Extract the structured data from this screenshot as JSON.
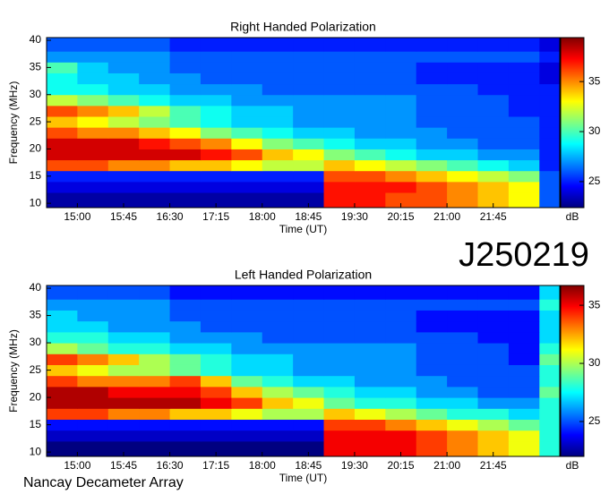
{
  "chart_data": [
    {
      "type": "heatmap",
      "title": "Right Handed Polarization",
      "xlabel": "Time (UT)",
      "ylabel": "Frequency (MHz)",
      "colorbar_label": "dB",
      "colormap": "jet",
      "xlim": [
        14.5,
        22.83
      ],
      "ylim": [
        9.2,
        40.5
      ],
      "clim": [
        22.4,
        39.4
      ],
      "xticks": [
        {
          "value": 15,
          "label": "15:00"
        },
        {
          "value": 15.75,
          "label": "15:45"
        },
        {
          "value": 16.5,
          "label": "16:30"
        },
        {
          "value": 17.25,
          "label": "17:15"
        },
        {
          "value": 18,
          "label": "18:00"
        },
        {
          "value": 18.75,
          "label": "18:45"
        },
        {
          "value": 19.5,
          "label": "19:30"
        },
        {
          "value": 20.25,
          "label": "20:15"
        },
        {
          "value": 21,
          "label": "21:00"
        },
        {
          "value": 21.75,
          "label": "21:45"
        }
      ],
      "yticks": [
        10,
        15,
        20,
        25,
        30,
        35,
        40
      ],
      "cticks": [
        25,
        30,
        35
      ],
      "x_edges": [
        14.5,
        15,
        15.5,
        16,
        16.5,
        17,
        17.5,
        18,
        18.5,
        19,
        19.5,
        20,
        20.5,
        21,
        21.5,
        22,
        22.5,
        22.83
      ],
      "y_edges": [
        9.2,
        12,
        14,
        16,
        18,
        20,
        22,
        24,
        26,
        28,
        30,
        32,
        34,
        36,
        38,
        40.5
      ],
      "values": [
        [
          23,
          23,
          23,
          23,
          23,
          23,
          23,
          23,
          23,
          37,
          37,
          36,
          36,
          35,
          34,
          33,
          26
        ],
        [
          24,
          24,
          24,
          24,
          24,
          24,
          24,
          24,
          24,
          37,
          37,
          37,
          36,
          35,
          34,
          33,
          26
        ],
        [
          25,
          25,
          25,
          25,
          25,
          25,
          25,
          25,
          25,
          36,
          36,
          35,
          34,
          33,
          32,
          31,
          26
        ],
        [
          36,
          36,
          35,
          35,
          34,
          34,
          33,
          32,
          32,
          34,
          33,
          32,
          31,
          30,
          29,
          28,
          25
        ],
        [
          38,
          38,
          38,
          38,
          38,
          37,
          36,
          34,
          33,
          31,
          30,
          29,
          28,
          28,
          27,
          27,
          25
        ],
        [
          38,
          38,
          38,
          37,
          36,
          35,
          33,
          31,
          30,
          29,
          28,
          28,
          27,
          27,
          26,
          26,
          25
        ],
        [
          36,
          35,
          35,
          34,
          33,
          31,
          30,
          29,
          28,
          28,
          27,
          27,
          27,
          26,
          26,
          26,
          25
        ],
        [
          34,
          33,
          32,
          31,
          30,
          29,
          28,
          28,
          27,
          27,
          27,
          27,
          26,
          26,
          26,
          26,
          25
        ],
        [
          36,
          35,
          34,
          32,
          30,
          29,
          28,
          28,
          27,
          27,
          27,
          27,
          26,
          26,
          26,
          25,
          25
        ],
        [
          32,
          31,
          30,
          29,
          28,
          28,
          27,
          27,
          27,
          27,
          27,
          27,
          26,
          26,
          26,
          25,
          25
        ],
        [
          29,
          29,
          28,
          28,
          27,
          27,
          27,
          26,
          26,
          26,
          26,
          26,
          26,
          26,
          25,
          25,
          25
        ],
        [
          29,
          28,
          28,
          27,
          27,
          26,
          26,
          26,
          26,
          26,
          26,
          26,
          25,
          25,
          25,
          25,
          24
        ],
        [
          30,
          28,
          27,
          27,
          26,
          26,
          26,
          26,
          26,
          26,
          26,
          26,
          25,
          25,
          25,
          25,
          24
        ],
        [
          27,
          27,
          27,
          27,
          26,
          26,
          26,
          26,
          26,
          26,
          26,
          26,
          26,
          26,
          26,
          26,
          25
        ],
        [
          26,
          26,
          26,
          26,
          25,
          25,
          25,
          25,
          25,
          25,
          25,
          25,
          25,
          25,
          25,
          25,
          24
        ]
      ]
    },
    {
      "type": "heatmap",
      "title": "Left Handed Polarization",
      "xlabel": "Time (UT)",
      "ylabel": "Frequency (MHz)",
      "colorbar_label": "dB",
      "colormap": "jet",
      "xlim": [
        14.5,
        22.83
      ],
      "ylim": [
        9.2,
        40.5
      ],
      "clim": [
        22,
        36.7
      ],
      "xticks": [
        {
          "value": 15,
          "label": "15:00"
        },
        {
          "value": 15.75,
          "label": "15:45"
        },
        {
          "value": 16.5,
          "label": "16:30"
        },
        {
          "value": 17.25,
          "label": "17:15"
        },
        {
          "value": 18,
          "label": "18:00"
        },
        {
          "value": 18.75,
          "label": "18:45"
        },
        {
          "value": 19.5,
          "label": "19:30"
        },
        {
          "value": 20.25,
          "label": "20:15"
        },
        {
          "value": 21,
          "label": "21:00"
        },
        {
          "value": 21.75,
          "label": "21:45"
        }
      ],
      "yticks": [
        10,
        15,
        20,
        25,
        30,
        35,
        40
      ],
      "cticks": [
        25,
        30,
        35
      ],
      "x_edges": [
        14.5,
        15,
        15.5,
        16,
        16.5,
        17,
        17.5,
        18,
        18.5,
        19,
        19.5,
        20,
        20.5,
        21,
        21.5,
        22,
        22.5,
        22.83
      ],
      "y_edges": [
        9.2,
        12,
        14,
        16,
        18,
        20,
        22,
        24,
        26,
        28,
        30,
        32,
        34,
        36,
        38,
        40.5
      ],
      "values": [
        [
          22,
          22,
          22,
          22,
          22,
          22,
          22,
          22,
          22,
          35,
          35,
          35,
          34,
          33,
          32,
          31,
          28
        ],
        [
          23,
          23,
          23,
          23,
          23,
          23,
          23,
          23,
          23,
          35,
          35,
          35,
          34,
          33,
          32,
          31,
          28
        ],
        [
          24,
          24,
          24,
          24,
          24,
          24,
          24,
          24,
          24,
          34,
          34,
          33,
          32,
          31,
          30,
          29,
          28
        ],
        [
          34,
          34,
          33,
          33,
          32,
          32,
          31,
          30,
          30,
          32,
          31,
          30,
          29,
          28,
          28,
          27,
          28
        ],
        [
          36,
          36,
          36,
          36,
          36,
          35,
          34,
          32,
          31,
          29,
          28,
          28,
          27,
          27,
          26,
          26,
          28
        ],
        [
          36,
          36,
          35,
          35,
          35,
          34,
          32,
          30,
          29,
          28,
          27,
          27,
          26,
          26,
          25,
          25,
          29
        ],
        [
          34,
          33,
          33,
          33,
          34,
          32,
          29,
          28,
          27,
          27,
          26,
          26,
          26,
          25,
          25,
          25,
          28
        ],
        [
          32,
          31,
          30,
          30,
          29,
          28,
          27,
          27,
          26,
          26,
          26,
          26,
          25,
          25,
          25,
          25,
          28
        ],
        [
          34,
          33,
          32,
          30,
          29,
          28,
          27,
          27,
          26,
          26,
          26,
          26,
          25,
          25,
          25,
          24,
          29
        ],
        [
          30,
          29,
          28,
          28,
          27,
          27,
          26,
          26,
          26,
          26,
          26,
          26,
          25,
          25,
          25,
          24,
          28
        ],
        [
          28,
          28,
          27,
          27,
          26,
          26,
          26,
          25,
          25,
          25,
          25,
          25,
          25,
          25,
          24,
          24,
          27
        ],
        [
          27,
          27,
          26,
          26,
          26,
          25,
          25,
          25,
          25,
          25,
          25,
          25,
          24,
          24,
          24,
          24,
          27
        ],
        [
          27,
          26,
          26,
          26,
          25,
          25,
          25,
          25,
          25,
          25,
          25,
          25,
          24,
          24,
          24,
          24,
          27
        ],
        [
          26,
          26,
          26,
          26,
          25,
          25,
          25,
          25,
          25,
          25,
          25,
          25,
          25,
          25,
          25,
          25,
          28
        ],
        [
          25,
          25,
          25,
          25,
          24,
          24,
          24,
          24,
          24,
          24,
          24,
          24,
          24,
          24,
          24,
          24,
          27
        ]
      ]
    }
  ],
  "labels": {
    "event": "J250219",
    "instrument": "Nancay Decameter Array"
  }
}
